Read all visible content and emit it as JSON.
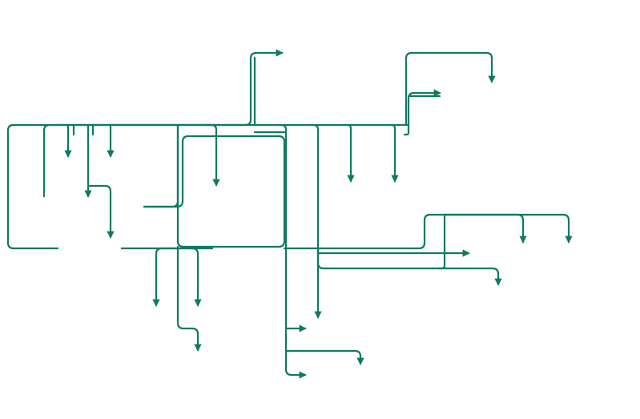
{
  "diagram": {
    "type": "connector-flow",
    "labels": [],
    "colors": {
      "connector": "#0e7a62",
      "background": "#ffffff"
    }
  }
}
